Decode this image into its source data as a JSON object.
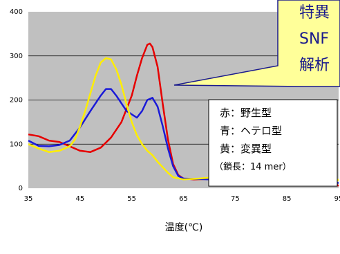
{
  "chart_data": {
    "type": "line",
    "title": "",
    "xlabel": "温度(℃)",
    "ylabel": "",
    "xlim": [
      35,
      95
    ],
    "ylim": [
      0,
      400
    ],
    "x_ticks": [
      "35",
      "45",
      "55",
      "65",
      "75",
      "85",
      "95"
    ],
    "y_ticks": [
      "0",
      "100",
      "200",
      "300",
      "400"
    ],
    "grid": "horizontal",
    "background_color": "#c0c0c0",
    "series": [
      {
        "key": "wild",
        "color": "#e60000",
        "x": [
          35,
          37,
          39,
          41,
          43,
          45,
          47,
          49,
          51,
          53,
          55,
          56,
          57,
          58,
          58.5,
          59,
          60,
          61,
          62,
          63,
          64,
          65,
          67,
          70,
          72,
          74,
          75,
          77,
          80,
          85,
          90,
          94,
          95
        ],
        "values": [
          122,
          118,
          108,
          105,
          95,
          85,
          82,
          92,
          115,
          150,
          210,
          255,
          295,
          325,
          328,
          320,
          275,
          190,
          110,
          55,
          30,
          22,
          20,
          21,
          22,
          28,
          22,
          18,
          15,
          14,
          12,
          14,
          5
        ]
      },
      {
        "key": "hetero",
        "color": "#1a1ad8",
        "x": [
          35,
          37,
          39,
          41,
          43,
          45,
          47,
          49,
          50,
          51,
          52,
          54,
          56,
          57,
          58,
          59,
          60,
          61,
          62,
          63,
          64,
          65,
          70,
          74,
          76,
          80,
          85,
          90,
          94,
          95
        ],
        "values": [
          108,
          96,
          95,
          98,
          108,
          138,
          175,
          210,
          225,
          225,
          210,
          175,
          160,
          175,
          200,
          205,
          185,
          140,
          90,
          50,
          28,
          22,
          20,
          24,
          28,
          20,
          14,
          12,
          12,
          12
        ]
      },
      {
        "key": "mutant",
        "color": "#ffee00",
        "x": [
          35,
          37,
          39,
          41,
          43,
          44,
          45,
          46,
          47,
          48,
          49,
          50,
          51,
          52,
          53,
          54,
          55,
          56,
          57,
          58,
          59,
          60,
          62,
          63,
          65,
          68,
          70,
          72,
          74,
          75,
          77,
          80,
          85,
          90,
          94,
          95
        ],
        "values": [
          100,
          90,
          82,
          85,
          95,
          110,
          140,
          175,
          215,
          255,
          285,
          295,
          292,
          270,
          235,
          190,
          150,
          120,
          100,
          85,
          75,
          60,
          35,
          25,
          20,
          22,
          24,
          27,
          28,
          28,
          24,
          18,
          14,
          12,
          12,
          20
        ]
      }
    ],
    "legend_lines": [
      "赤：野生型",
      "青：ヘテロ型",
      "黄：変異型",
      "（鎖長：14 mer）"
    ],
    "callout_lines": [
      "特異",
      "SNF",
      "解析"
    ]
  },
  "colors": {
    "plot_bg": "#c0c0c0",
    "page_bg": "#ffffff",
    "callout_fill": "#ffff99",
    "callout_text": "#1a1a8c"
  }
}
